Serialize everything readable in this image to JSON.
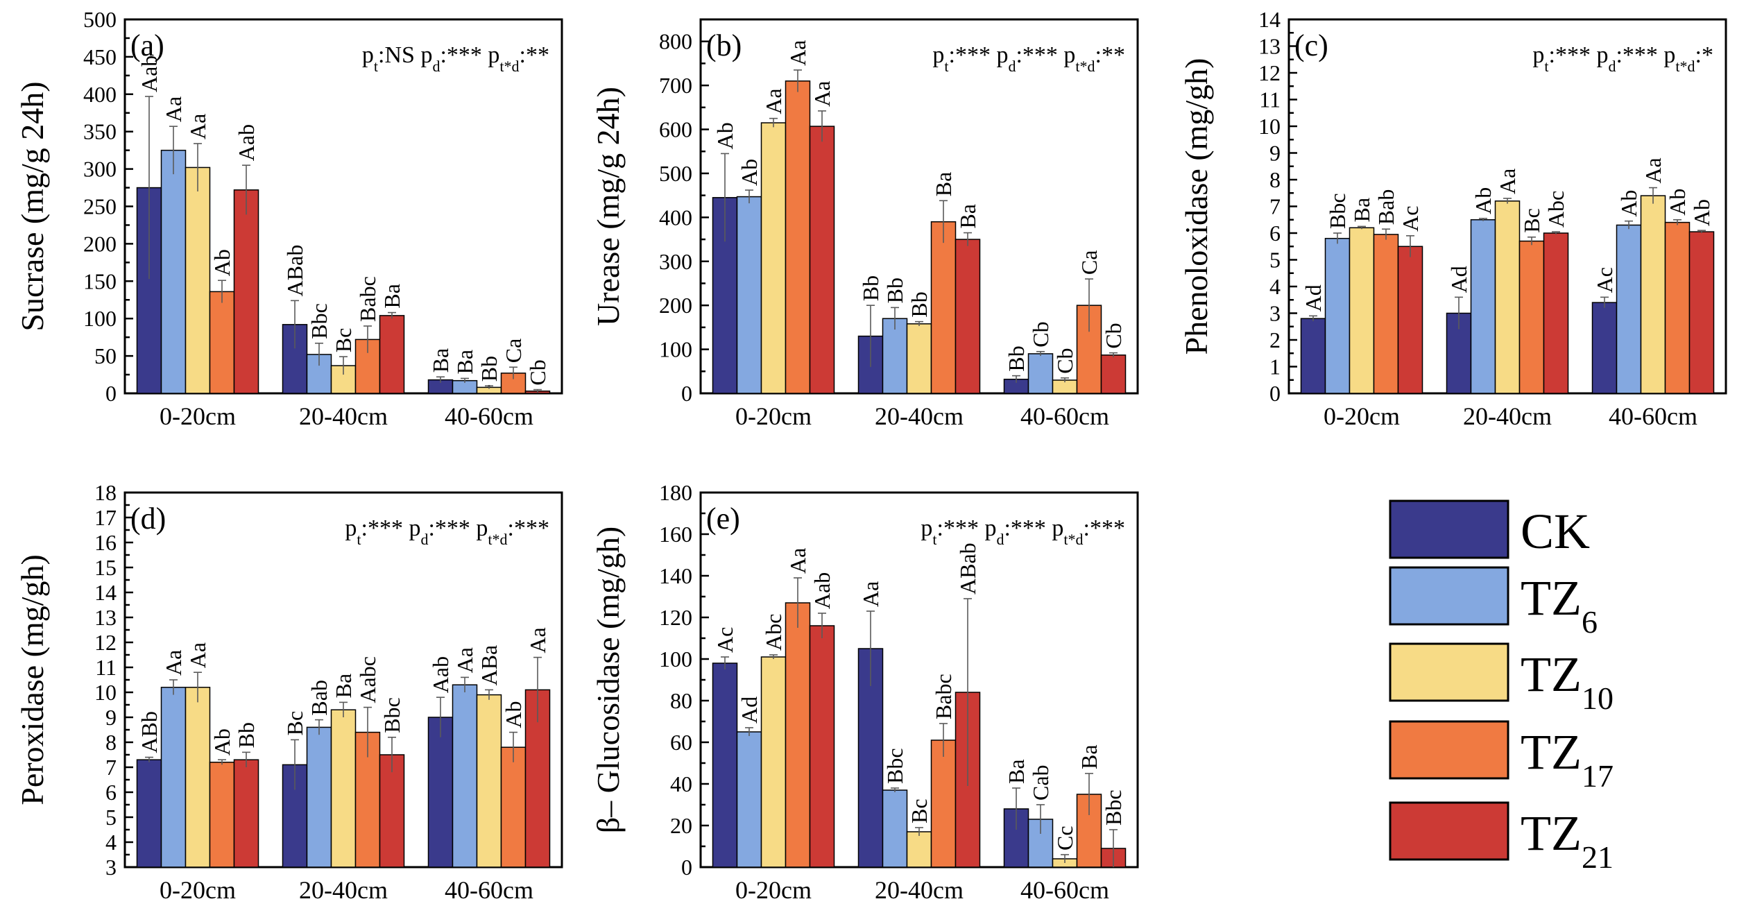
{
  "legend": {
    "items": [
      {
        "label": "CK",
        "sub": "",
        "color": "#3a3a8c"
      },
      {
        "label": "TZ",
        "sub": "6",
        "color": "#84a8e0"
      },
      {
        "label": "TZ",
        "sub": "10",
        "color": "#f7db86"
      },
      {
        "label": "TZ",
        "sub": "17",
        "color": "#f07a42"
      },
      {
        "label": "TZ",
        "sub": "21",
        "color": "#cc3a35"
      }
    ]
  },
  "chart_data": [
    {
      "type": "bar",
      "panel": "(a)",
      "ylabel": "Sucrase (mg/g 24h)",
      "ylim": [
        0,
        500
      ],
      "yticks": [
        0,
        50,
        100,
        150,
        200,
        250,
        300,
        350,
        400,
        450,
        500
      ],
      "categories": [
        "0-20cm",
        "20-40cm",
        "40-60cm"
      ],
      "stats": [
        {
          "text": "p",
          "sub": "t"
        },
        {
          "text": ":NS p",
          "sub": "d"
        },
        {
          "text": ":*** p",
          "sub": "t*d"
        },
        {
          "text": ":**",
          "sub": ""
        }
      ],
      "series": [
        {
          "name": "CK",
          "values": [
            275,
            92,
            18
          ],
          "errors": [
            122,
            32,
            4
          ],
          "labels": [
            "Aab",
            "ABab",
            "Ba"
          ]
        },
        {
          "name": "TZ6",
          "values": [
            325,
            52,
            17
          ],
          "errors": [
            32,
            15,
            3
          ],
          "labels": [
            "Aa",
            "Bbc",
            "Ba"
          ]
        },
        {
          "name": "TZ10",
          "values": [
            302,
            37,
            8
          ],
          "errors": [
            32,
            12,
            2
          ],
          "labels": [
            "Aa",
            "Bc",
            "Bb"
          ]
        },
        {
          "name": "TZ17",
          "values": [
            136,
            72,
            27
          ],
          "errors": [
            15,
            18,
            8
          ],
          "labels": [
            "Ab",
            "Babc",
            "Ca"
          ]
        },
        {
          "name": "TZ21",
          "values": [
            272,
            104,
            3
          ],
          "errors": [
            33,
            4,
            2
          ],
          "labels": [
            "Aab",
            "Ba",
            "Cb"
          ]
        }
      ]
    },
    {
      "type": "bar",
      "panel": "(b)",
      "ylabel": "Urease (mg/g 24h)",
      "ylim": [
        0,
        850
      ],
      "yticks": [
        0,
        100,
        200,
        300,
        400,
        500,
        600,
        700,
        800
      ],
      "categories": [
        "0-20cm",
        "20-40cm",
        "40-60cm"
      ],
      "stats": [
        {
          "text": "p",
          "sub": "t"
        },
        {
          "text": ":*** p",
          "sub": "d"
        },
        {
          "text": ":*** p",
          "sub": "t*d"
        },
        {
          "text": ":**",
          "sub": ""
        }
      ],
      "series": [
        {
          "name": "CK",
          "values": [
            445,
            130,
            32
          ],
          "errors": [
            100,
            70,
            8
          ],
          "labels": [
            "Ab",
            "Bb",
            "Bb"
          ]
        },
        {
          "name": "TZ6",
          "values": [
            447,
            170,
            90
          ],
          "errors": [
            15,
            25,
            5
          ],
          "labels": [
            "Ab",
            "Bb",
            "Cb"
          ]
        },
        {
          "name": "TZ10",
          "values": [
            615,
            158,
            30
          ],
          "errors": [
            10,
            5,
            5
          ],
          "labels": [
            "Aa",
            "Bb",
            "Cb"
          ]
        },
        {
          "name": "TZ17",
          "values": [
            710,
            390,
            200
          ],
          "errors": [
            25,
            48,
            60
          ],
          "labels": [
            "Aa",
            "Ba",
            "Ca"
          ]
        },
        {
          "name": "TZ21",
          "values": [
            607,
            350,
            87
          ],
          "errors": [
            35,
            15,
            5
          ],
          "labels": [
            "Aa",
            "Ba",
            "Cb"
          ]
        }
      ]
    },
    {
      "type": "bar",
      "panel": "(c)",
      "ylabel": "Phenoloxidase (mg/gh)",
      "ylim": [
        0,
        14
      ],
      "yticks": [
        0,
        1,
        2,
        3,
        4,
        5,
        6,
        7,
        8,
        9,
        10,
        11,
        12,
        13,
        14
      ],
      "categories": [
        "0-20cm",
        "20-40cm",
        "40-60cm"
      ],
      "stats": [
        {
          "text": "p",
          "sub": "t"
        },
        {
          "text": ":*** p",
          "sub": "d"
        },
        {
          "text": ":*** p",
          "sub": "t*d"
        },
        {
          "text": ":*",
          "sub": ""
        }
      ],
      "series": [
        {
          "name": "CK",
          "values": [
            2.8,
            3.0,
            3.4
          ],
          "errors": [
            0.1,
            0.6,
            0.2
          ],
          "labels": [
            "Ad",
            "Ad",
            "Ac"
          ]
        },
        {
          "name": "TZ6",
          "values": [
            5.8,
            6.5,
            6.3
          ],
          "errors": [
            0.2,
            0.05,
            0.15
          ],
          "labels": [
            "Bbc",
            "Ab",
            "Ab"
          ]
        },
        {
          "name": "TZ10",
          "values": [
            6.2,
            7.2,
            7.4
          ],
          "errors": [
            0.05,
            0.1,
            0.3
          ],
          "labels": [
            "Ba",
            "Aa",
            "Aa"
          ]
        },
        {
          "name": "TZ17",
          "values": [
            5.95,
            5.7,
            6.4
          ],
          "errors": [
            0.2,
            0.15,
            0.1
          ],
          "labels": [
            "Bab",
            "Bc",
            "Ab"
          ]
        },
        {
          "name": "TZ21",
          "values": [
            5.5,
            6.0,
            6.05
          ],
          "errors": [
            0.4,
            0.05,
            0.05
          ],
          "labels": [
            "Ac",
            "Abc",
            "Ab"
          ]
        }
      ]
    },
    {
      "type": "bar",
      "panel": "(d)",
      "ylabel": "Peroxidase (mg/gh)",
      "ylim": [
        3,
        18
      ],
      "yticks": [
        3,
        4,
        5,
        6,
        7,
        8,
        9,
        10,
        11,
        12,
        13,
        14,
        15,
        16,
        17,
        18
      ],
      "categories": [
        "0-20cm",
        "20-40cm",
        "40-60cm"
      ],
      "stats": [
        {
          "text": "p",
          "sub": "t"
        },
        {
          "text": ":*** p",
          "sub": "d"
        },
        {
          "text": ":*** p",
          "sub": "t*d"
        },
        {
          "text": ":***",
          "sub": ""
        }
      ],
      "series": [
        {
          "name": "CK",
          "values": [
            7.3,
            7.1,
            9.0
          ],
          "errors": [
            0.1,
            1.0,
            0.8
          ],
          "labels": [
            "ABb",
            "Bc",
            "Aab"
          ]
        },
        {
          "name": "TZ6",
          "values": [
            10.2,
            8.6,
            10.3
          ],
          "errors": [
            0.3,
            0.3,
            0.3
          ],
          "labels": [
            "Aa",
            "Bab",
            "Aa"
          ]
        },
        {
          "name": "TZ10",
          "values": [
            10.2,
            9.3,
            9.9
          ],
          "errors": [
            0.6,
            0.3,
            0.2
          ],
          "labels": [
            "Aa",
            "Ba",
            "ABa"
          ]
        },
        {
          "name": "TZ17",
          "values": [
            7.2,
            8.4,
            7.8
          ],
          "errors": [
            0.1,
            1.0,
            0.6
          ],
          "labels": [
            "Ab",
            "Aabc",
            "Ab"
          ]
        },
        {
          "name": "TZ21",
          "values": [
            7.3,
            7.5,
            10.1
          ],
          "errors": [
            0.3,
            0.7,
            1.3
          ],
          "labels": [
            "Bb",
            "Bbc",
            "Aa"
          ]
        }
      ]
    },
    {
      "type": "bar",
      "panel": "(e)",
      "ylabel": "β– Glucosidase (mg/gh)",
      "ylim": [
        0,
        180
      ],
      "yticks": [
        0,
        20,
        40,
        60,
        80,
        100,
        120,
        140,
        160,
        180
      ],
      "categories": [
        "0-20cm",
        "20-40cm",
        "40-60cm"
      ],
      "stats": [
        {
          "text": "p",
          "sub": "t"
        },
        {
          "text": ":*** p",
          "sub": "d"
        },
        {
          "text": ":*** p",
          "sub": "t*d"
        },
        {
          "text": ":***",
          "sub": ""
        }
      ],
      "series": [
        {
          "name": "CK",
          "values": [
            98,
            105,
            28
          ],
          "errors": [
            3,
            18,
            10
          ],
          "labels": [
            "Ac",
            "Aa",
            "Ba"
          ]
        },
        {
          "name": "TZ6",
          "values": [
            65,
            37,
            23
          ],
          "errors": [
            2,
            1,
            7
          ],
          "labels": [
            "Ad",
            "Bbc",
            "Cab"
          ]
        },
        {
          "name": "TZ10",
          "values": [
            101,
            17,
            4
          ],
          "errors": [
            1,
            2,
            2
          ],
          "labels": [
            "Abc",
            "Bc",
            "Cc"
          ]
        },
        {
          "name": "TZ17",
          "values": [
            127,
            61,
            35
          ],
          "errors": [
            12,
            8,
            10
          ],
          "labels": [
            "Aa",
            "Babc",
            "Ba"
          ]
        },
        {
          "name": "TZ21",
          "values": [
            116,
            84,
            9
          ],
          "errors": [
            6,
            45,
            9
          ],
          "labels": [
            "Aab",
            "ABab",
            "Bbc"
          ]
        }
      ]
    }
  ]
}
